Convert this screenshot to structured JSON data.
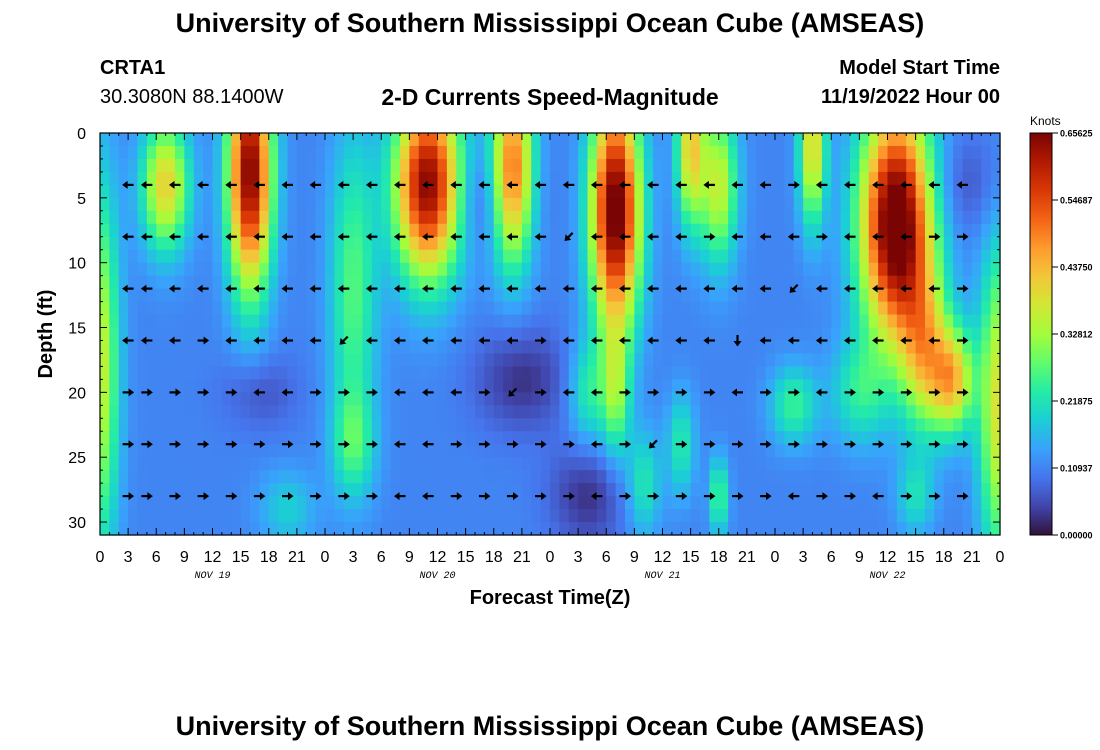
{
  "page": {
    "title": "University of Southern Mississippi Ocean Cube (AMSEAS)",
    "station": "CRTA1",
    "coords": "30.3080N  88.1400W",
    "plot_title": "2-D Currents Speed-Magnitude",
    "model_label": "Model Start Time",
    "model_time": "11/19/2022 Hour 00",
    "bottom_title": "University of Southern Mississippi Ocean Cube (AMSEAS)"
  },
  "colors": {
    "scale": [
      "#30123b",
      "#4145ab",
      "#4675ed",
      "#39a2fc",
      "#1bcfd4",
      "#24eca6",
      "#61fc6c",
      "#a4fc3b",
      "#d1e834",
      "#f3c63a",
      "#fe9b2d",
      "#f36315",
      "#d93806",
      "#b11901",
      "#7a0403"
    ]
  },
  "chart_data": {
    "type": "heatmap",
    "title": "2-D Currents Speed-Magnitude",
    "xlabel": "Forecast Time(Z)",
    "ylabel": "Depth (ft)",
    "x_range": [
      0,
      96
    ],
    "x_tick_labels": [
      "0",
      "3",
      "6",
      "9",
      "12",
      "15",
      "18",
      "21",
      "0",
      "3",
      "6",
      "9",
      "12",
      "15",
      "18",
      "21",
      "0",
      "3",
      "6",
      "9",
      "12",
      "15",
      "18",
      "21",
      "0",
      "3",
      "6",
      "9",
      "12",
      "15",
      "18",
      "21",
      "0"
    ],
    "day_labels": [
      {
        "hour": 12,
        "label": "NOV 19"
      },
      {
        "hour": 36,
        "label": "NOV 20"
      },
      {
        "hour": 60,
        "label": "NOV 21"
      },
      {
        "hour": 84,
        "label": "NOV 22"
      }
    ],
    "y_range": [
      0,
      31
    ],
    "y_ticks": [
      0,
      5,
      10,
      15,
      20,
      25,
      30
    ],
    "colorbar": {
      "label": "Knots",
      "min": 0.0,
      "max": 0.65625,
      "tick_labels": [
        "0.00000",
        "0.10937",
        "0.21875",
        "0.32812",
        "0.43750",
        "0.54687",
        "0.65625"
      ]
    },
    "arrow_depths_ft": [
      4,
      8,
      12,
      16,
      20,
      24,
      28
    ],
    "arrow_hours": [
      3,
      5,
      8,
      11,
      14,
      17,
      20,
      23,
      26,
      29,
      32,
      35,
      38,
      41,
      44,
      47,
      50,
      53,
      56,
      59,
      62,
      65,
      68,
      71,
      74,
      77,
      80,
      83,
      86,
      89,
      92
    ],
    "arrow_directions": [
      "W W W W W W W W W W W W W W W W W W W W W W W W E W W W W W W",
      "W W W W W W W W W W W W W W W W SW W W W W E W W W E W W W E E",
      "W W W W W W W W W W W W W W W W W W W W W W W W SW W W W W W E",
      "W W W E W W W W SW W W W W W W E W W W W W W S W W W W W W W E",
      "E E E E E W W E E E W W W E SW E W W E E E E W E E W E E E E E",
      "E E E E E E E E E E W W E E E E E W E SW E E E E E E E E E E E",
      "E E E E E E E E E E W W E E E E E W E E E E E E W E E W E E E"
    ]
  }
}
